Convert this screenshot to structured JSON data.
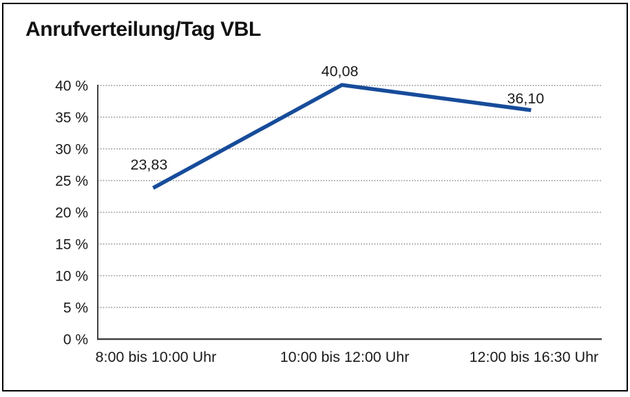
{
  "chart_data": {
    "type": "line",
    "title": "Anrufverteilung/Tag VBL",
    "categories": [
      "8:00 bis 10:00 Uhr",
      "10:00 bis 12:00 Uhr",
      "12:00 bis 16:30 Uhr"
    ],
    "values": [
      23.83,
      40.08,
      36.1
    ],
    "value_labels": [
      "23,83",
      "40,08",
      "36,10"
    ],
    "xlabel": "",
    "ylabel": "",
    "ylim": [
      0,
      40
    ],
    "ytick_step": 5,
    "ytick_labels": [
      "0 %",
      "5 %",
      "10 %",
      "15 %",
      "20 %",
      "25 %",
      "30 %",
      "35 %",
      "40 %"
    ],
    "grid": "horizontal-dotted",
    "legend": "none",
    "colors": {
      "line": "#174c9a",
      "axis": "#404040",
      "grid": "#6e6e6e",
      "text": "#1a1a1a",
      "border": "#000000",
      "background": "#ffffff"
    }
  }
}
